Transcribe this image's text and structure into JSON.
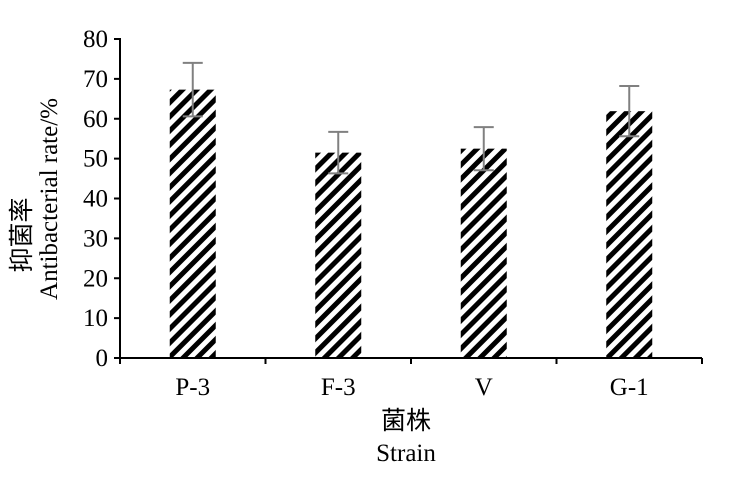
{
  "chart_data": {
    "type": "bar",
    "categories": [
      "P-3",
      "F-3",
      "V",
      "G-1"
    ],
    "values": [
      67.3,
      51.5,
      52.5,
      61.9
    ],
    "errors": [
      6.7,
      5.2,
      5.4,
      6.3
    ],
    "xlabel": [
      "菌株",
      "Strain"
    ],
    "ylabel": [
      "抑菌率",
      "Antibacterial rate/%"
    ],
    "ylim": [
      0,
      80
    ],
    "yticks": [
      0,
      10,
      20,
      30,
      40,
      50,
      60,
      70,
      80
    ],
    "grid": false,
    "legend": "none",
    "bar_pattern": "diagonal-stripes",
    "colors": {
      "bar": "#000000",
      "errorbar": "#808080",
      "axis": "#000000"
    }
  }
}
